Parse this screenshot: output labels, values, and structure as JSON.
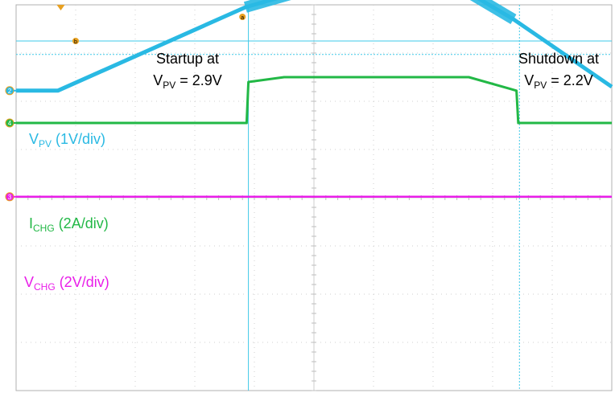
{
  "chart_data": {
    "type": "line",
    "title": "",
    "xlabel": "",
    "ylabel": "",
    "xlim": [
      0,
      10
    ],
    "ylim": [
      0,
      8
    ],
    "grid": true,
    "annotations": {
      "startup": {
        "line1": "Startup at",
        "sym": "V",
        "sub": "PV",
        "rest": " = 2.9V"
      },
      "shutdown": {
        "line1": "Shutdown at",
        "sym": "V",
        "sub": "PV",
        "rest": " = 2.2V"
      }
    },
    "series": [
      {
        "key": "vpv",
        "sym": "V",
        "sub": "PV",
        "scale": "  (1V/div)",
        "color": "#29b9e3",
        "marker": "2",
        "x": [
          0,
          0.7,
          3.85,
          4.7,
          7.6,
          8.35,
          10
        ],
        "y": [
          6.22,
          6.22,
          7.95,
          8.25,
          8.25,
          7.7,
          6.3
        ]
      },
      {
        "key": "ichg",
        "sym": "I",
        "sub": "CHG",
        "scale": "  (2A/div)",
        "color": "#22b846",
        "marker": "4",
        "x": [
          0,
          3.87,
          3.9,
          4.5,
          7.6,
          8.4,
          8.43,
          10
        ],
        "y": [
          5.55,
          5.55,
          6.4,
          6.5,
          6.5,
          6.22,
          5.55,
          5.55
        ]
      },
      {
        "key": "vchg",
        "sym": "V",
        "sub": "CHG",
        "scale": "  (2V/div)",
        "color": "#e91ee9",
        "marker": "3",
        "x": [
          0,
          3.9,
          8.4,
          10
        ],
        "y": [
          4.02,
          4.02,
          4.02,
          4.02
        ]
      }
    ],
    "cursors": {
      "vertical": [
        3.9,
        8.45
      ],
      "horizontal": [
        7.25,
        6.97
      ],
      "trigger_marker": "a",
      "level_marker": "b"
    }
  }
}
